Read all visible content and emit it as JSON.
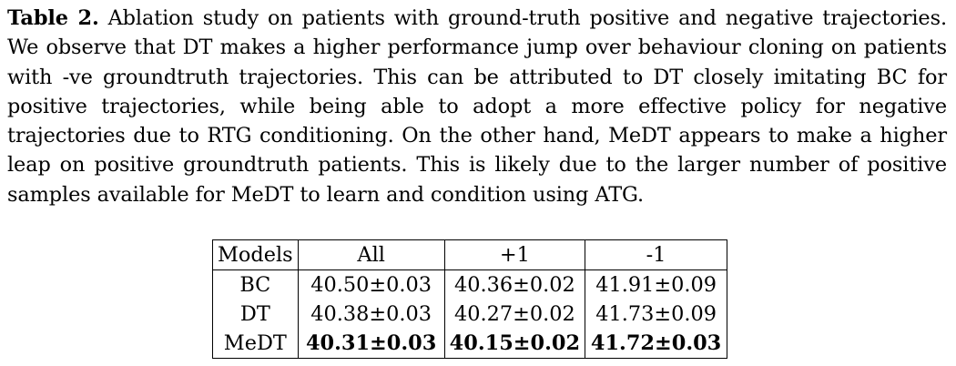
{
  "caption": {
    "label": "Table 2.",
    "text": "Ablation study on patients with ground-truth positive and negative trajectories. We observe that DT makes a higher performance jump over behaviour cloning on patients with -ve groundtruth trajectories. This can be attributed to DT closely imitating BC for positive trajectories, while being able to adopt a more effective policy for negative trajectories due to RTG conditioning. On the other hand, MeDT appears to make a higher leap on positive groundtruth patients. This is likely due to the larger number of positive samples available for MeDT to learn and condition using ATG."
  },
  "table": {
    "headers": [
      "Models",
      "All",
      "+1",
      "-1"
    ],
    "rows": [
      {
        "model": "BC",
        "all": "40.50±0.03",
        "pos": "40.36±0.02",
        "neg": "41.91±0.09"
      },
      {
        "model": "DT",
        "all": "40.38±0.03",
        "pos": "40.27±0.02",
        "neg": "41.73±0.09"
      },
      {
        "model": "MeDT",
        "all": "40.31±0.03",
        "pos": "40.15±0.02",
        "neg": "41.72±0.03"
      }
    ]
  }
}
